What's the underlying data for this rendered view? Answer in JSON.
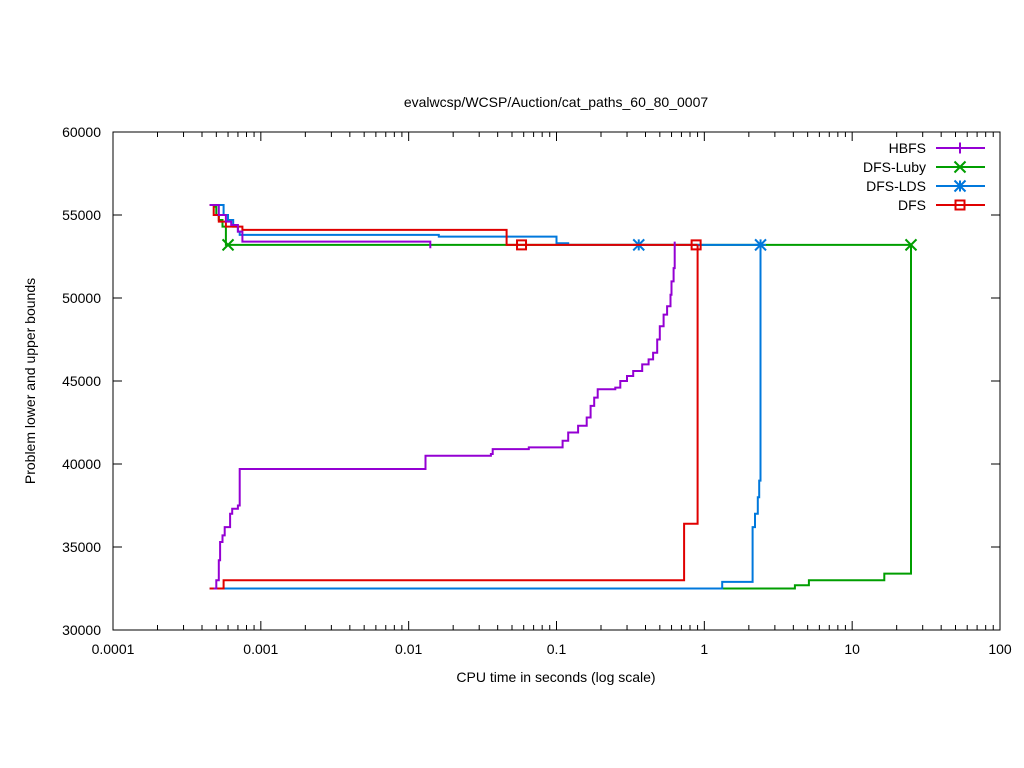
{
  "chart_data": {
    "type": "line",
    "title": "evalwcsp/WCSP/Auction/cat_paths_60_80_0007",
    "xlabel": "CPU time in seconds (log scale)",
    "ylabel": "Problem lower and upper bounds",
    "xscale": "log",
    "xlim": [
      0.0001,
      100
    ],
    "ylim": [
      30000,
      60000
    ],
    "x_ticks": [
      {
        "v": 0.0001,
        "label": "0.0001"
      },
      {
        "v": 0.001,
        "label": "0.001"
      },
      {
        "v": 0.01,
        "label": "0.01"
      },
      {
        "v": 0.1,
        "label": "0.1"
      },
      {
        "v": 1,
        "label": "1"
      },
      {
        "v": 10,
        "label": "10"
      },
      {
        "v": 100,
        "label": "100"
      }
    ],
    "y_ticks": [
      {
        "v": 30000,
        "label": "30000"
      },
      {
        "v": 35000,
        "label": "35000"
      },
      {
        "v": 40000,
        "label": "40000"
      },
      {
        "v": 45000,
        "label": "45000"
      },
      {
        "v": 50000,
        "label": "50000"
      },
      {
        "v": 55000,
        "label": "55000"
      },
      {
        "v": 60000,
        "label": "60000"
      }
    ],
    "grid": false,
    "legend_position": "top-right",
    "series": [
      {
        "name": "HBFS",
        "color": "#9400d3",
        "marker": "plus",
        "upper": [
          [
            0.00045,
            55600
          ],
          [
            0.00052,
            55000
          ],
          [
            0.00058,
            54600
          ],
          [
            0.00063,
            54400
          ],
          [
            0.0007,
            54000
          ],
          [
            0.00075,
            53400
          ],
          [
            0.014,
            53400
          ],
          [
            0.014,
            53000
          ]
        ],
        "lower": [
          [
            0.00048,
            32500
          ],
          [
            0.0005,
            33000
          ],
          [
            0.00052,
            34200
          ],
          [
            0.00053,
            35300
          ],
          [
            0.00055,
            35700
          ],
          [
            0.00057,
            36200
          ],
          [
            0.00062,
            37000
          ],
          [
            0.00064,
            37300
          ],
          [
            0.0007,
            37500
          ],
          [
            0.00072,
            39700
          ],
          [
            0.0128,
            39700
          ],
          [
            0.013,
            40500
          ],
          [
            0.036,
            40600
          ],
          [
            0.037,
            40900
          ],
          [
            0.062,
            40900
          ],
          [
            0.065,
            41000
          ],
          [
            0.1,
            41000
          ],
          [
            0.11,
            41400
          ],
          [
            0.12,
            41900
          ],
          [
            0.14,
            42300
          ],
          [
            0.16,
            42800
          ],
          [
            0.17,
            43500
          ],
          [
            0.18,
            44000
          ],
          [
            0.19,
            44500
          ],
          [
            0.25,
            44600
          ],
          [
            0.27,
            45000
          ],
          [
            0.3,
            45300
          ],
          [
            0.33,
            45600
          ],
          [
            0.38,
            46000
          ],
          [
            0.42,
            46300
          ],
          [
            0.45,
            46700
          ],
          [
            0.48,
            47500
          ],
          [
            0.5,
            48300
          ],
          [
            0.53,
            49000
          ],
          [
            0.56,
            49500
          ],
          [
            0.59,
            50200
          ],
          [
            0.6,
            51000
          ],
          [
            0.62,
            51800
          ],
          [
            0.63,
            52600
          ],
          [
            0.63,
            53400
          ]
        ],
        "final_marker": [
          0.63,
          53400
        ]
      },
      {
        "name": "DFS-Luby",
        "color": "#009e00",
        "marker": "x",
        "upper": [
          [
            0.00048,
            55500
          ],
          [
            0.0005,
            55000
          ],
          [
            0.00052,
            54700
          ],
          [
            0.00055,
            54300
          ],
          [
            0.00058,
            53200
          ],
          [
            25,
            53200
          ]
        ],
        "lower": [
          [
            0.00048,
            32500
          ],
          [
            4,
            32500
          ],
          [
            4.1,
            32700
          ],
          [
            5,
            32700
          ],
          [
            5.1,
            33000
          ],
          [
            16,
            33000
          ],
          [
            16.5,
            33400
          ],
          [
            25,
            33400
          ],
          [
            25,
            53200
          ]
        ],
        "markers": [
          [
            0.0006,
            53200
          ],
          [
            25,
            53200
          ]
        ]
      },
      {
        "name": "DFS-LDS",
        "color": "#0078dc",
        "marker": "star",
        "upper": [
          [
            0.00045,
            55600
          ],
          [
            0.00055,
            55600
          ],
          [
            0.00056,
            55000
          ],
          [
            0.0006,
            54700
          ],
          [
            0.00065,
            54300
          ],
          [
            0.0007,
            54000
          ],
          [
            0.00072,
            53800
          ],
          [
            0.015,
            53800
          ],
          [
            0.016,
            53700
          ],
          [
            0.095,
            53700
          ],
          [
            0.1,
            53300
          ],
          [
            0.12,
            53200
          ],
          [
            2.4,
            53200
          ]
        ],
        "lower": [
          [
            0.00045,
            32500
          ],
          [
            1.3,
            32500
          ],
          [
            1.32,
            32900
          ],
          [
            2.1,
            32900
          ],
          [
            2.12,
            36200
          ],
          [
            2.2,
            37000
          ],
          [
            2.3,
            38000
          ],
          [
            2.35,
            39000
          ],
          [
            2.4,
            53200
          ]
        ],
        "markers": [
          [
            0.36,
            53200
          ],
          [
            2.4,
            53200
          ]
        ]
      },
      {
        "name": "DFS",
        "color": "#e00000",
        "marker": "square",
        "upper": [
          [
            0.00045,
            55600
          ],
          [
            0.00048,
            55000
          ],
          [
            0.00052,
            54600
          ],
          [
            0.00058,
            54300
          ],
          [
            0.00075,
            54100
          ],
          [
            0.045,
            54100
          ],
          [
            0.046,
            53200
          ],
          [
            0.9,
            53200
          ]
        ],
        "lower": [
          [
            0.00045,
            32500
          ],
          [
            0.00055,
            32500
          ],
          [
            0.00056,
            33000
          ],
          [
            0.72,
            33000
          ],
          [
            0.73,
            36400
          ],
          [
            0.88,
            36400
          ],
          [
            0.9,
            53200
          ]
        ],
        "markers": [
          [
            0.058,
            53200
          ],
          [
            0.88,
            53200
          ]
        ]
      }
    ]
  }
}
